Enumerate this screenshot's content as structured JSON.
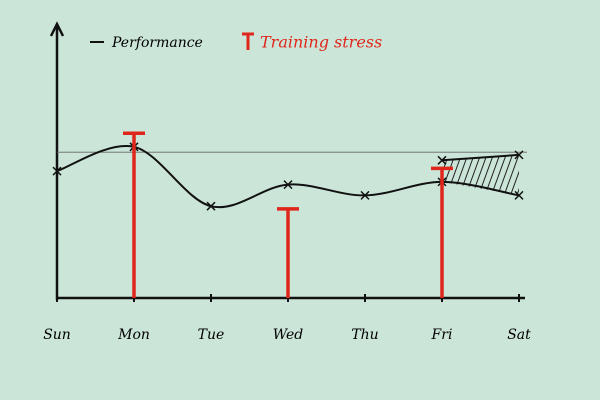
{
  "chart_data": {
    "type": "line",
    "categories": [
      "Sun",
      "Mon",
      "Tue",
      "Wed",
      "Thu",
      "Fri",
      "Sat"
    ],
    "series": [
      {
        "name": "Performance",
        "color": "#111111",
        "values": [
          4.7,
          5.6,
          3.4,
          4.2,
          3.8,
          4.3,
          3.8
        ]
      },
      {
        "color": "#111111",
        "values": [
          null,
          null,
          null,
          null,
          null,
          5.1,
          5.3
        ]
      },
      {
        "name": "Training stress",
        "color": "#e0261b",
        "values": [
          null,
          6.1,
          null,
          3.3,
          null,
          4.8,
          null
        ]
      }
    ],
    "reference_line": 5.4,
    "ylim": [
      0,
      10
    ]
  }
}
